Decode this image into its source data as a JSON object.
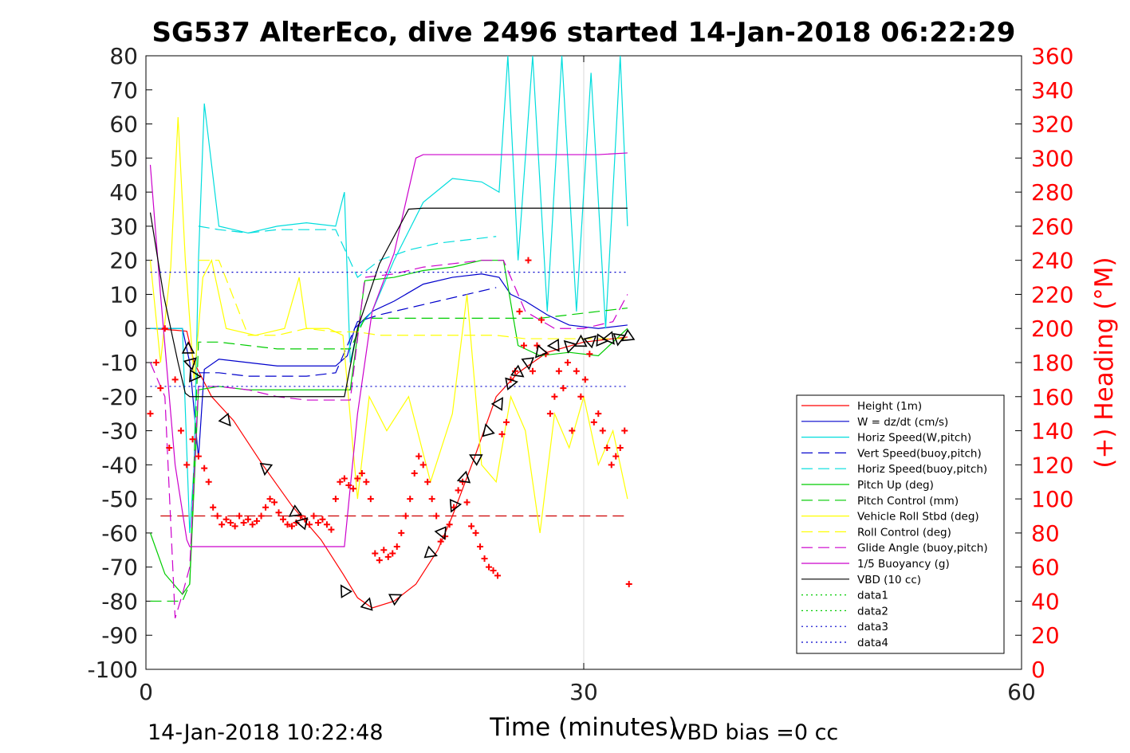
{
  "chart_data": {
    "type": "line",
    "title": "SG537 AlterEco, dive 2496 started 14-Jan-2018 06:22:29",
    "xlabel": "Time (minutes)",
    "ylabel_right": "(+) Heading (°M)",
    "xlim": [
      0,
      60
    ],
    "ylim": [
      -100,
      80
    ],
    "ylim_right": [
      0,
      360
    ],
    "x_ticks": [
      "0",
      "30",
      "60"
    ],
    "y_ticks": [
      "80",
      "70",
      "60",
      "50",
      "40",
      "30",
      "20",
      "10",
      "0",
      "-10",
      "-20",
      "-30",
      "-40",
      "-50",
      "-60",
      "-70",
      "-80",
      "-90",
      "-100"
    ],
    "y_ticks_right": [
      "360",
      "340",
      "320",
      "300",
      "280",
      "260",
      "240",
      "220",
      "200",
      "180",
      "160",
      "140",
      "120",
      "100",
      "80",
      "60",
      "40",
      "20",
      "0"
    ],
    "grid": "x only at 30",
    "legend_position": "lower-right",
    "footer_left": "14-Jan-2018 10:22:48",
    "footer_right": "VBD bias =0 cc",
    "series": [
      {
        "name": "Height (1m)",
        "color": "#ff0000",
        "style": "solid",
        "x": [
          0.4,
          2.0,
          2.8,
          3.3,
          4.5,
          6.0,
          8.0,
          10.0,
          12.0,
          13.5,
          14.5,
          15.5,
          17.0,
          18.5,
          20.0,
          21.0,
          22.5,
          24.0,
          25.5,
          27.5,
          30.0,
          33.0
        ],
        "y": [
          0,
          -0.5,
          -0.8,
          -10,
          -20,
          -27,
          -40,
          -52,
          -62,
          -72,
          -79,
          -82,
          -80,
          -75,
          -65,
          -55,
          -38,
          -20,
          -13,
          -7,
          -4,
          -2.5
        ]
      },
      {
        "name": "W = dz/dt (cm/s)",
        "color": "#0000cc",
        "style": "solid",
        "x": [
          0.3,
          1.5,
          2.5,
          3.0,
          3.6,
          4.0,
          5.0,
          7.0,
          9.0,
          11.0,
          13.0,
          13.8,
          14.3,
          15.5,
          17.0,
          19.0,
          21.0,
          23.0,
          24.2,
          25.0,
          26.0,
          27.5,
          29.0,
          31.0,
          33.0
        ],
        "y": [
          0,
          0,
          0,
          -10,
          -38,
          -12,
          -9,
          -10,
          -11,
          -11,
          -11,
          -8,
          0,
          5,
          8,
          13,
          15,
          16,
          15,
          10,
          8,
          4,
          1,
          0,
          1
        ]
      },
      {
        "name": "Horiz Speed(W,pitch)",
        "color": "#00dddd",
        "style": "solid",
        "x": [
          0.3,
          1.5,
          2.5,
          3.0,
          3.3,
          3.6,
          4.0,
          5.0,
          7.0,
          9.0,
          11.0,
          13.0,
          13.6,
          14.0,
          14.5,
          15.5,
          17.0,
          19.0,
          21.0,
          23.0,
          24.2,
          24.8,
          25.5,
          26.5,
          27.5,
          28.5,
          29.5,
          30.5,
          31.5,
          32.5,
          33.0
        ],
        "y": [
          0,
          0,
          0,
          -60,
          -40,
          20,
          66,
          30,
          28,
          30,
          31,
          30,
          40,
          -10,
          0,
          5,
          20,
          37,
          44,
          43,
          40,
          80,
          20,
          80,
          5,
          80,
          5,
          75,
          0,
          80,
          30
        ]
      },
      {
        "name": "Vert Speed(buoy,pitch)",
        "color": "#0000cc",
        "style": "dashed",
        "x": [
          3.6,
          5.0,
          7.0,
          9.0,
          11.0,
          13.0,
          14.5,
          16.0,
          18.0,
          20.0,
          22.0,
          24.0
        ],
        "y": [
          -13,
          -13,
          -14,
          -14,
          -14,
          -13,
          2,
          4,
          6,
          8,
          10,
          12
        ]
      },
      {
        "name": "Horiz Speed(buoy,pitch)",
        "color": "#00dddd",
        "style": "dashed",
        "x": [
          3.6,
          5.0,
          7.0,
          9.0,
          11.0,
          13.0,
          14.5,
          16.0,
          18.0,
          20.0,
          22.0,
          24.0
        ],
        "y": [
          30,
          29,
          28,
          29,
          29,
          29,
          15,
          20,
          23,
          25,
          26,
          27
        ]
      },
      {
        "name": "Pitch Up (deg)",
        "color": "#00cc00",
        "style": "solid",
        "x": [
          0.3,
          1.3,
          2.5,
          3.0,
          3.6,
          5.0,
          7.0,
          9.0,
          11.0,
          13.0,
          14.0,
          15.0,
          17.0,
          19.0,
          21.0,
          23.0,
          24.5,
          25.5,
          27.0,
          29.0,
          31.0,
          33.0
        ],
        "y": [
          -60,
          -72,
          -78,
          -75,
          -18,
          -17,
          -18,
          -18,
          -18,
          -18,
          -18,
          14,
          15,
          17,
          18,
          20,
          20,
          -5,
          -8,
          -7,
          -8,
          0
        ]
      },
      {
        "name": "Pitch Control (mm)",
        "color": "#00cc00",
        "style": "dashed",
        "x": [
          0.3,
          1.5,
          2.5,
          3.0,
          3.6,
          5.0,
          7.0,
          9.0,
          11.0,
          13.0,
          14.0,
          15.0,
          17.0,
          19.0,
          21.0,
          23.0,
          25.0,
          27.0,
          29.0,
          31.0,
          33.0
        ],
        "y": [
          -80,
          -80,
          -80,
          -75,
          -4,
          -4,
          -5,
          -6,
          -6,
          -6,
          -6,
          3,
          3,
          3,
          3,
          3,
          3,
          3,
          4,
          5,
          6
        ]
      },
      {
        "name": "Vehicle Roll Stbd (deg)",
        "color": "#ffff00",
        "style": "solid",
        "x": [
          0.3,
          1.0,
          1.7,
          2.2,
          2.7,
          3.3,
          3.9,
          4.5,
          5.5,
          7.5,
          9.5,
          10.5,
          11.0,
          12.5,
          13.5,
          14.5,
          15.3,
          16.5,
          18.0,
          19.5,
          21.0,
          22.0,
          23.0,
          24.0,
          25.0,
          26.0,
          27.0,
          28.0,
          29.0,
          30.0,
          31.0,
          32.0,
          33.0
        ],
        "y": [
          20,
          -10,
          18,
          62,
          20,
          -15,
          15,
          20,
          0,
          -2,
          0,
          15,
          0,
          0,
          -2,
          -50,
          -20,
          -30,
          -20,
          -45,
          -25,
          10,
          -40,
          -45,
          -20,
          -30,
          -60,
          -25,
          -35,
          -20,
          -40,
          -30,
          -50
        ]
      },
      {
        "name": "Roll Control (deg)",
        "color": "#ffff00",
        "style": "dashed",
        "x": [
          3.6,
          5.0,
          7.0,
          9.0,
          11.0,
          13.0,
          14.5,
          16.0,
          18.0,
          20.0,
          22.0,
          24.0,
          26.0,
          28.0,
          30.0,
          32.0,
          33.0
        ],
        "y": [
          20,
          20,
          -2,
          -2,
          0,
          -1,
          -1,
          -2,
          -2,
          -2,
          -2,
          -2,
          -3,
          -3,
          -3,
          -3,
          -3
        ]
      },
      {
        "name": "Glide Angle (buoy,pitch)",
        "color": "#cc00cc",
        "style": "dashed",
        "x": [
          0.3,
          1.3,
          2.0,
          2.5,
          3.0,
          3.6,
          5.0,
          7.0,
          9.0,
          11.0,
          13.0,
          14.0,
          15.0,
          17.0,
          19.0,
          21.0,
          23.0,
          24.5,
          26.0,
          28.0,
          30.0,
          32.0,
          33.0
        ],
        "y": [
          -10,
          -20,
          -85,
          -78,
          -70,
          -17,
          -17,
          -18,
          -20,
          -21,
          -21,
          -21,
          15,
          16,
          18,
          19,
          20,
          20,
          5,
          0,
          0,
          2,
          10
        ]
      },
      {
        "name": "1/5 Buoyancy (g)",
        "color": "#cc00cc",
        "style": "solid",
        "x": [
          0.3,
          1.0,
          2.0,
          2.8,
          3.0,
          5.0,
          8.0,
          11.0,
          13.6,
          14.5,
          15.5,
          17.0,
          18.5,
          19.0,
          22.0,
          25.0,
          28.0,
          31.0,
          33.0
        ],
        "y": [
          48,
          10,
          -40,
          -62,
          -64,
          -64,
          -64,
          -64,
          -64,
          -25,
          5,
          22,
          50,
          51,
          51,
          51,
          51,
          51,
          51.5
        ]
      },
      {
        "name": "VBD (10 cc)",
        "color": "#000000",
        "style": "solid",
        "x": [
          0.3,
          1.2,
          2.2,
          2.7,
          3.0,
          5.0,
          8.0,
          11.0,
          13.6,
          14.5,
          16.0,
          18.0,
          19.0,
          22.0,
          25.0,
          28.0,
          31.0,
          33.0
        ],
        "y": [
          34,
          10,
          -10,
          -19,
          -20,
          -20,
          -20,
          -20,
          -20,
          0,
          19,
          35,
          35.3,
          35.3,
          35.3,
          35.3,
          35.3,
          35.3
        ]
      },
      {
        "name": "data1",
        "color": "#00cc00",
        "style": "dotted",
        "x": [],
        "y": []
      },
      {
        "name": "data2",
        "color": "#00cc00",
        "style": "dotted",
        "x": [],
        "y": []
      },
      {
        "name": "data3",
        "color": "#0000cc",
        "style": "dotted",
        "x": [
          0.3,
          33
        ],
        "y": [
          -17,
          -17
        ]
      },
      {
        "name": "data4",
        "color": "#0000cc",
        "style": "dotted",
        "x": [
          0.3,
          33
        ],
        "y": [
          16.5,
          16.5
        ]
      }
    ],
    "reference_lines": [
      {
        "color": "#cc0000",
        "style": "dashed",
        "x": [
          1,
          33
        ],
        "y": [
          -55,
          -55
        ]
      }
    ],
    "heading_points": {
      "color": "#ff0000",
      "marker": "+",
      "axis": "right",
      "x": [
        0.3,
        0.7,
        1.0,
        1.3,
        1.6,
        2.0,
        2.4,
        2.8,
        3.2,
        3.6,
        4.0,
        4.3,
        4.6,
        4.9,
        5.2,
        5.5,
        5.8,
        6.1,
        6.4,
        6.7,
        7.0,
        7.3,
        7.6,
        7.9,
        8.2,
        8.5,
        8.8,
        9.1,
        9.4,
        9.7,
        10.0,
        10.3,
        10.6,
        10.9,
        11.2,
        11.5,
        11.8,
        12.1,
        12.4,
        12.7,
        13.0,
        13.3,
        13.6,
        13.9,
        14.2,
        14.5,
        14.8,
        15.1,
        15.4,
        15.7,
        16.0,
        16.3,
        16.6,
        16.9,
        17.2,
        17.5,
        17.8,
        18.1,
        18.4,
        18.7,
        19.0,
        19.3,
        19.6,
        19.9,
        20.2,
        20.5,
        20.8,
        21.1,
        21.4,
        21.7,
        22.0,
        22.3,
        22.6,
        22.9,
        23.2,
        23.5,
        23.8,
        24.1,
        24.4,
        24.7,
        25.0,
        25.3,
        25.6,
        25.9,
        26.2,
        26.5,
        26.8,
        27.1,
        27.4,
        27.7,
        28.0,
        28.3,
        28.6,
        28.9,
        29.2,
        29.5,
        29.8,
        30.1,
        30.4,
        30.7,
        31.0,
        31.3,
        31.6,
        31.9,
        32.2,
        32.5,
        32.8,
        33.1
      ],
      "y": [
        150,
        180,
        165,
        200,
        130,
        170,
        140,
        120,
        135,
        125,
        118,
        110,
        95,
        90,
        85,
        88,
        86,
        84,
        90,
        86,
        88,
        85,
        87,
        90,
        95,
        100,
        98,
        92,
        88,
        85,
        84,
        86,
        90,
        88,
        85,
        90,
        86,
        88,
        85,
        82,
        100,
        110,
        112,
        108,
        106,
        112,
        115,
        110,
        100,
        68,
        64,
        70,
        66,
        68,
        72,
        80,
        90,
        100,
        115,
        125,
        120,
        110,
        100,
        90,
        75,
        78,
        85,
        95,
        105,
        110,
        98,
        84,
        80,
        72,
        65,
        60,
        58,
        55,
        138,
        145,
        170,
        175,
        210,
        190,
        240,
        175,
        190,
        205,
        185,
        150,
        160,
        175,
        165,
        180,
        140,
        175,
        160,
        170,
        185,
        145,
        150,
        140,
        130,
        120,
        125,
        130,
        140,
        50
      ]
    },
    "position_markers": {
      "color": "#000000",
      "marker": "triangle",
      "x": [
        2.9,
        3.1,
        3.3,
        5.5,
        8.2,
        10.2,
        10.7,
        13.6,
        15.2,
        17.1,
        19.5,
        20.3,
        21.1,
        21.8,
        22.6,
        23.4,
        24.2,
        25.0,
        25.5,
        26.2,
        27.0,
        28.0,
        29.0,
        29.8,
        30.5,
        31.2,
        31.8,
        32.4,
        33.0
      ],
      "y": [
        -6,
        -10,
        -14,
        -27,
        -41,
        -54,
        -57,
        -77,
        -81,
        -79,
        -66,
        -60,
        -52,
        -44,
        -38,
        -30,
        -22,
        -16,
        -13,
        -10,
        -7,
        -5,
        -5,
        -4,
        -3.5,
        -3.5,
        -3,
        -3,
        -2.5
      ]
    }
  }
}
